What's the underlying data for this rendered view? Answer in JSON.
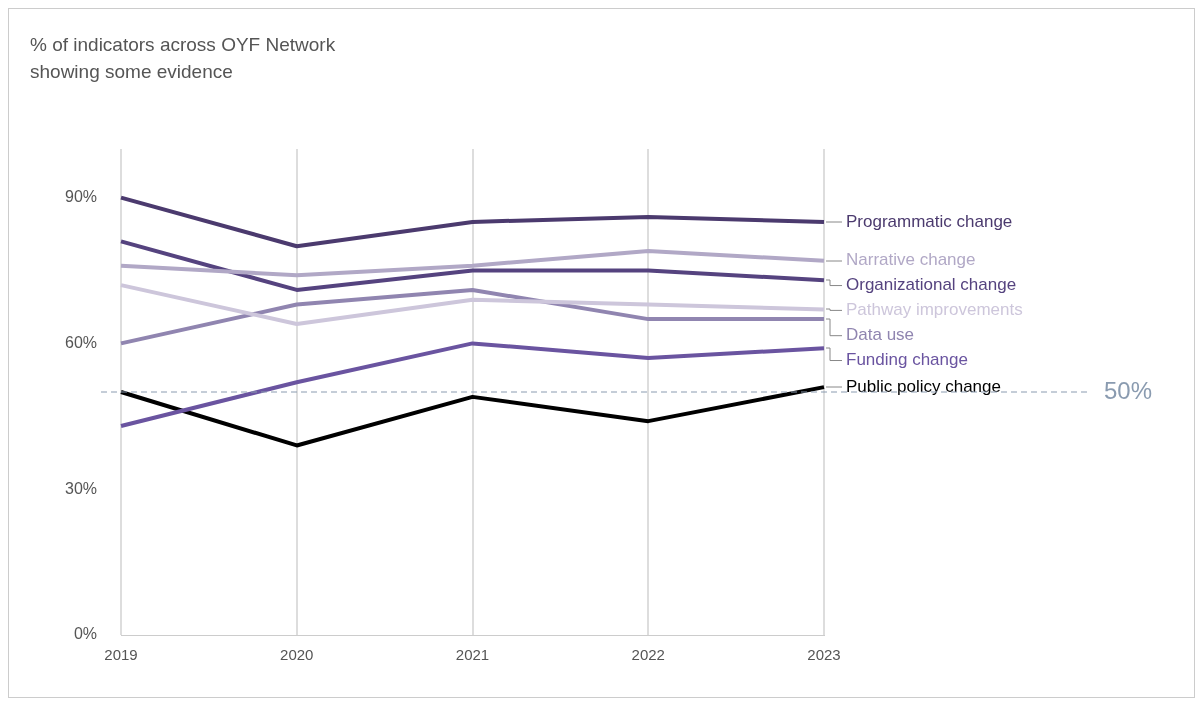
{
  "chart_data": {
    "type": "line",
    "title": "% of indicators across OYF Network showing some evidence",
    "categories": [
      "2019",
      "2020",
      "2021",
      "2022",
      "2023"
    ],
    "series": [
      {
        "name": "Programmatic change",
        "color": "#4b3a6e",
        "values": [
          90,
          80,
          85,
          86,
          85
        ]
      },
      {
        "name": "Narrative change",
        "color": "#b1a8c6",
        "values": [
          76,
          74,
          76,
          79,
          77
        ]
      },
      {
        "name": "Organizational change",
        "color": "#55437f",
        "values": [
          81,
          71,
          75,
          75,
          73
        ]
      },
      {
        "name": "Pathway improvements",
        "color": "#cdc6db",
        "values": [
          72,
          64,
          69,
          68,
          67
        ]
      },
      {
        "name": "Data use",
        "color": "#9085b0",
        "values": [
          60,
          68,
          71,
          65,
          65
        ]
      },
      {
        "name": "Funding change",
        "color": "#6a54a0",
        "values": [
          43,
          52,
          60,
          57,
          59
        ]
      },
      {
        "name": "Public policy change",
        "color": "#000000",
        "values": [
          50,
          39,
          49,
          44,
          51
        ]
      }
    ],
    "ylim": [
      0,
      100
    ],
    "yticks": [
      {
        "value": 0,
        "label": "0%"
      },
      {
        "value": 30,
        "label": "30%"
      },
      {
        "value": 60,
        "label": "60%"
      },
      {
        "value": 90,
        "label": "90%"
      }
    ],
    "grid": "x",
    "legend": false,
    "marker": "none",
    "line_style": "solid",
    "ref_lines": [
      {
        "axis": "y",
        "value": 50,
        "label": "50%",
        "color": "#8a9bb0",
        "line_style": "dashed"
      }
    ]
  }
}
